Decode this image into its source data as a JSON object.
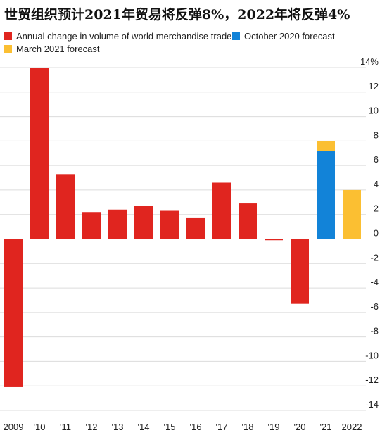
{
  "chart_data": {
    "type": "bar",
    "title": "世贸组织预计2021年贸易将反弹8%，2022年将反弹4%",
    "xlabel": "",
    "ylabel": "",
    "ylim": [
      -14,
      14
    ],
    "y_ticks": [
      {
        "value": 14,
        "label": "14%"
      },
      {
        "value": 12,
        "label": "12"
      },
      {
        "value": 10,
        "label": "10"
      },
      {
        "value": 8,
        "label": "8"
      },
      {
        "value": 6,
        "label": "6"
      },
      {
        "value": 4,
        "label": "4"
      },
      {
        "value": 2,
        "label": "2"
      },
      {
        "value": 0,
        "label": "0"
      },
      {
        "value": -2,
        "label": "-2"
      },
      {
        "value": -4,
        "label": "-4"
      },
      {
        "value": -6,
        "label": "-6"
      },
      {
        "value": -8,
        "label": "-8"
      },
      {
        "value": -10,
        "label": "-10"
      },
      {
        "value": -12,
        "label": "-12"
      },
      {
        "value": -14,
        "label": "-14"
      }
    ],
    "grid": true,
    "legend_position": "top-left",
    "categories": [
      "2009",
      "'10",
      "'11",
      "'12",
      "'13",
      "'14",
      "'15",
      "'16",
      "'17",
      "'18",
      "'19",
      "'20",
      "'21",
      "2022"
    ],
    "series": [
      {
        "name": "Annual change in volume of world merchandise trade",
        "color": "#e0251f",
        "values": [
          -12.1,
          14.0,
          5.3,
          2.2,
          2.4,
          2.7,
          2.3,
          1.7,
          4.6,
          2.9,
          -0.1,
          -5.3,
          null,
          null
        ]
      },
      {
        "name": "October 2020 forecast",
        "color": "#1283d8",
        "values": [
          null,
          null,
          null,
          null,
          null,
          null,
          null,
          null,
          null,
          null,
          null,
          null,
          7.2,
          null
        ]
      },
      {
        "name": "March 2021 forecast",
        "color": "#fbbf32",
        "values": [
          null,
          null,
          null,
          null,
          null,
          null,
          null,
          null,
          null,
          null,
          null,
          null,
          8.0,
          4.0
        ]
      }
    ]
  }
}
